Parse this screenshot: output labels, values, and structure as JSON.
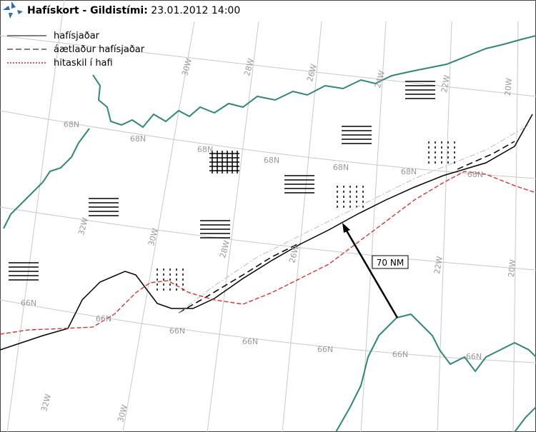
{
  "header": {
    "title": "Hafískort - Gildistími:",
    "timestamp": "23.01.2012 14:00"
  },
  "legend": [
    {
      "label": "hafísjaðar"
    },
    {
      "label": "áætlaður hafísjaðar"
    },
    {
      "label": "hitaskil í hafi"
    }
  ],
  "annotation": "70 NM",
  "grid_labels": [
    "30W",
    "28W",
    "26W",
    "24W",
    "22W",
    "20W",
    "68N",
    "68N",
    "68N",
    "68N",
    "68N",
    "68N",
    "68N",
    "32W",
    "30W",
    "28W",
    "26W",
    "22W",
    "20W",
    "66N",
    "66N",
    "66N",
    "66N",
    "66N",
    "66N",
    "66N",
    "32W",
    "30W"
  ]
}
